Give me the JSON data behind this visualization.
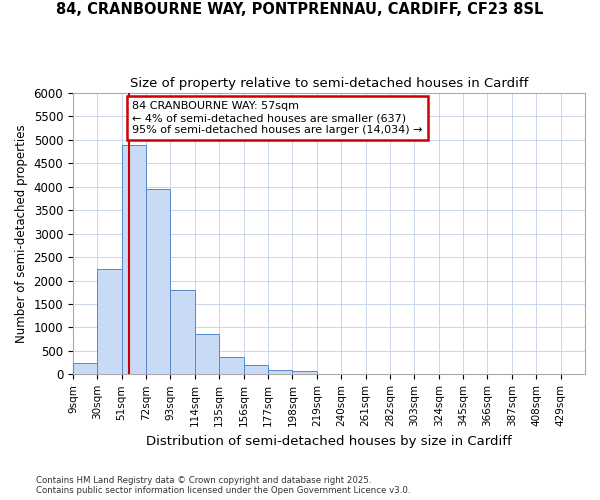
{
  "title_line1": "84, CRANBOURNE WAY, PONTPRENNAU, CARDIFF, CF23 8SL",
  "title_line2": "Size of property relative to semi-detached houses in Cardiff",
  "xlabel": "Distribution of semi-detached houses by size in Cardiff",
  "ylabel": "Number of semi-detached properties",
  "footnote": "Contains HM Land Registry data © Crown copyright and database right 2025.\nContains public sector information licensed under the Open Government Licence v3.0.",
  "bar_color": "#c8daf5",
  "bar_edge_color": "#5588cc",
  "grid_color": "#c0d0e8",
  "background_color": "#ffffff",
  "vline_color": "#cc0000",
  "vline_x": 57,
  "annotation_text": "84 CRANBOURNE WAY: 57sqm\n← 4% of semi-detached houses are smaller (637)\n95% of semi-detached houses are larger (14,034) →",
  "annotation_box_facecolor": "#ffffff",
  "annotation_border_color": "#cc0000",
  "bin_edges": [
    9,
    30,
    51,
    72,
    93,
    114,
    135,
    156,
    177,
    198,
    219,
    240,
    261,
    282,
    303,
    324,
    345,
    366,
    387,
    408,
    429,
    450
  ],
  "categories": [
    "9sqm",
    "30sqm",
    "51sqm",
    "72sqm",
    "93sqm",
    "114sqm",
    "135sqm",
    "156sqm",
    "177sqm",
    "198sqm",
    "219sqm",
    "240sqm",
    "261sqm",
    "282sqm",
    "303sqm",
    "324sqm",
    "345sqm",
    "366sqm",
    "387sqm",
    "408sqm",
    "429sqm"
  ],
  "values": [
    250,
    2250,
    4900,
    3950,
    1800,
    850,
    375,
    200,
    100,
    75,
    0,
    0,
    0,
    0,
    0,
    0,
    0,
    0,
    0,
    0,
    0
  ],
  "ylim": [
    0,
    6000
  ],
  "yticks": [
    0,
    500,
    1000,
    1500,
    2000,
    2500,
    3000,
    3500,
    4000,
    4500,
    5000,
    5500,
    6000
  ],
  "figsize": [
    6.0,
    5.0
  ],
  "dpi": 100
}
